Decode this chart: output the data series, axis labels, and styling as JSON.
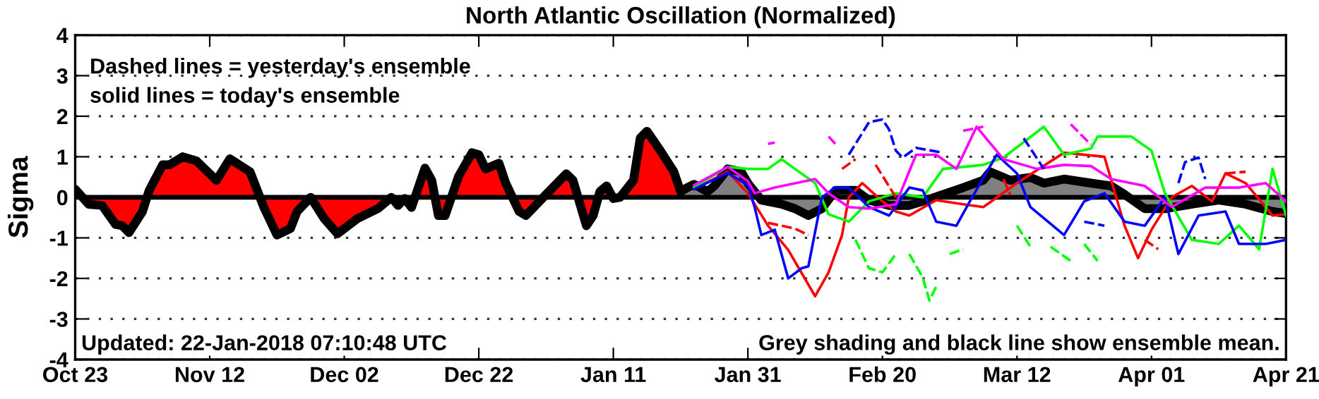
{
  "chart_data": {
    "type": "line",
    "title": "North Atlantic Oscillation (Normalized)",
    "ylabel": "Sigma",
    "annotations": [
      "Dashed lines = yesterday's ensemble",
      "solid lines = today's ensemble",
      "Updated: 22-Jan-2018 07:10:48 UTC",
      "Grey shading and black line show ensemble mean."
    ],
    "xlim": [
      "2017-10-23",
      "2018-04-21"
    ],
    "xticks": [
      {
        "value": "2017-10-23",
        "label": "Oct 23"
      },
      {
        "value": "2017-11-12",
        "label": "Nov 12"
      },
      {
        "value": "2017-12-02",
        "label": "Dec 02"
      },
      {
        "value": "2017-12-22",
        "label": "Dec 22"
      },
      {
        "value": "2018-01-11",
        "label": "Jan 11"
      },
      {
        "value": "2018-01-31",
        "label": "Jan 31"
      },
      {
        "value": "2018-02-20",
        "label": "Feb 20"
      },
      {
        "value": "2018-03-12",
        "label": "Mar 12"
      },
      {
        "value": "2018-04-01",
        "label": "Apr 01"
      },
      {
        "value": "2018-04-21",
        "label": "Apr 21"
      }
    ],
    "ylim": [
      -4,
      4
    ],
    "yticks": [
      -4,
      -3,
      -2,
      -1,
      0,
      1,
      2,
      3,
      4
    ],
    "grid": "y",
    "legend": false,
    "ref_lines": [
      {
        "axis": "y",
        "value": 0,
        "color": "#000000",
        "line_style": "solid"
      }
    ],
    "series": [
      {
        "color": "#ff0000",
        "line_style": "solid",
        "x": [
          "2018-01-23",
          "2018-01-28",
          "2018-01-31",
          "2018-02-03",
          "2018-02-06",
          "2018-02-10",
          "2018-02-12",
          "2018-02-14",
          "2018-02-15",
          "2018-02-17",
          "2018-02-20",
          "2018-02-22",
          "2018-02-24",
          "2018-02-28",
          "2018-03-04",
          "2018-03-07",
          "2018-03-12",
          "2018-03-19",
          "2018-03-25",
          "2018-03-28",
          "2018-03-30",
          "2018-04-01",
          "2018-04-04",
          "2018-04-07",
          "2018-04-10",
          "2018-04-12",
          "2018-04-15",
          "2018-04-19",
          "2018-04-21"
        ],
        "values": [
          0.2,
          0.63,
          0.1,
          -0.7,
          -1.3,
          -2.44,
          -1.85,
          -0.93,
          0,
          0.35,
          -0.1,
          -0.35,
          -0.45,
          -0.07,
          -0.17,
          -0.24,
          0.35,
          1.1,
          1.0,
          -0.7,
          -1.5,
          -0.8,
          0,
          0.28,
          -0.1,
          0.59,
          0.35,
          -0.45,
          -0.42
        ]
      },
      {
        "color": "#00ff00",
        "line_style": "solid",
        "x": [
          "2018-01-23",
          "2018-01-28",
          "2018-01-31",
          "2018-02-03",
          "2018-02-05",
          "2018-02-07",
          "2018-02-10",
          "2018-02-12",
          "2018-02-15",
          "2018-02-18",
          "2018-02-22",
          "2018-02-26",
          "2018-03-01",
          "2018-03-07",
          "2018-03-10",
          "2018-03-16",
          "2018-03-19",
          "2018-03-23",
          "2018-03-24",
          "2018-03-29",
          "2018-04-01",
          "2018-04-03",
          "2018-04-07",
          "2018-04-11",
          "2018-04-14",
          "2018-04-17",
          "2018-04-19",
          "2018-04-21"
        ],
        "values": [
          0.25,
          0.75,
          0.7,
          0.7,
          0.94,
          0.7,
          0.35,
          -0.42,
          -0.6,
          -0.1,
          0.1,
          0,
          0.7,
          0.8,
          0.98,
          1.74,
          1.05,
          1.2,
          1.5,
          1.5,
          1.15,
          0.1,
          -1.05,
          -1.15,
          -0.7,
          -1.28,
          0.7,
          -0.45
        ]
      },
      {
        "color": "#0000ff",
        "line_style": "solid",
        "x": [
          "2018-01-23",
          "2018-01-28",
          "2018-01-31",
          "2018-02-01",
          "2018-02-02",
          "2018-02-04",
          "2018-02-06",
          "2018-02-08",
          "2018-02-09",
          "2018-02-11",
          "2018-02-13",
          "2018-02-15",
          "2018-02-18",
          "2018-02-21",
          "2018-02-24",
          "2018-02-26",
          "2018-02-28",
          "2018-03-03",
          "2018-03-05",
          "2018-03-09",
          "2018-03-12",
          "2018-03-14",
          "2018-03-19",
          "2018-03-22",
          "2018-03-25",
          "2018-03-28",
          "2018-03-31",
          "2018-04-03",
          "2018-04-05",
          "2018-04-08",
          "2018-04-12",
          "2018-04-14",
          "2018-04-18",
          "2018-04-21"
        ],
        "values": [
          0.2,
          0.6,
          0.3,
          -0.24,
          -0.93,
          -0.8,
          -2.0,
          -1.75,
          -1.7,
          0,
          0.24,
          0.24,
          -0.24,
          -0.45,
          0.24,
          0.17,
          -0.6,
          -0.7,
          -0.1,
          1.05,
          0.59,
          -0.24,
          -0.93,
          -0.1,
          0.1,
          -0.6,
          -0.7,
          0,
          -1.4,
          -0.45,
          -0.35,
          -1.15,
          -1.15,
          -1.05
        ]
      },
      {
        "color": "#ff00ff",
        "line_style": "solid",
        "x": [
          "2018-01-23",
          "2018-01-28",
          "2018-01-31",
          "2018-02-01",
          "2018-02-04",
          "2018-02-10",
          "2018-02-12",
          "2018-02-15",
          "2018-02-18",
          "2018-02-22",
          "2018-02-25",
          "2018-02-28",
          "2018-03-03",
          "2018-03-06",
          "2018-03-10",
          "2018-03-15",
          "2018-03-19",
          "2018-03-23",
          "2018-03-26",
          "2018-03-31",
          "2018-04-04",
          "2018-04-09",
          "2018-04-14",
          "2018-04-18",
          "2018-04-21"
        ],
        "values": [
          0.3,
          0.75,
          0.4,
          0.1,
          0.24,
          0.45,
          0.1,
          -0.24,
          -0.28,
          -0.17,
          1.05,
          1.05,
          0.7,
          1.74,
          0.94,
          0.7,
          0.8,
          0.77,
          0.45,
          0.28,
          -0.24,
          0.24,
          0.24,
          0.35,
          -0.1
        ]
      },
      {
        "color": "#ff00ff",
        "line_style": "dashed",
        "x": [
          "2018-02-03",
          "2018-02-04",
          "2018-02-08",
          "2018-02-12",
          "2018-02-13",
          "2018-02-20",
          "2018-03-04",
          "2018-03-07",
          "2018-03-12",
          "2018-03-20",
          "2018-03-23"
        ],
        "values": [
          1.32,
          1.35,
          null,
          1.5,
          1.32,
          null,
          1.64,
          1.74,
          null,
          1.8,
          1.3
        ]
      },
      {
        "color": "#0000ff",
        "line_style": "dashed",
        "x": [
          "2018-02-15",
          "2018-02-18",
          "2018-02-20",
          "2018-02-21",
          "2018-02-22",
          "2018-02-23",
          "2018-02-25",
          "2018-03-01",
          "2018-03-06",
          "2018-03-13",
          "2018-03-16",
          "2018-03-19",
          "2018-03-22",
          "2018-03-25",
          "2018-04-01",
          "2018-04-05",
          "2018-04-06",
          "2018-04-08",
          "2018-04-09"
        ],
        "values": [
          1.05,
          1.85,
          1.92,
          1.67,
          1.15,
          0.98,
          1.22,
          1.1,
          null,
          1.46,
          0.7,
          null,
          -0.6,
          -0.7,
          null,
          0.35,
          0.87,
          0.98,
          0.45
        ]
      },
      {
        "color": "#00ff00",
        "line_style": "dashed",
        "x": [
          "2018-02-16",
          "2018-02-18",
          "2018-02-20",
          "2018-02-22",
          "2018-02-23",
          "2018-02-24",
          "2018-02-26",
          "2018-02-27",
          "2018-02-28",
          "2018-03-01",
          "2018-03-02",
          "2018-03-04",
          "2018-03-08",
          "2018-03-12",
          "2018-03-14",
          "2018-03-15",
          "2018-03-17",
          "2018-03-20",
          "2018-03-21",
          "2018-03-22",
          "2018-03-24"
        ],
        "values": [
          -1.05,
          -1.75,
          -1.85,
          -1.4,
          null,
          -1.4,
          -1.98,
          -2.55,
          -2.2,
          null,
          -1.4,
          -1.28,
          null,
          -0.7,
          -1.22,
          null,
          -1.22,
          -1.57,
          null,
          -1.15,
          -1.57
        ]
      },
      {
        "color": "#ff0000",
        "line_style": "dashed",
        "x": [
          "2018-02-03",
          "2018-02-07",
          "2018-02-09",
          "2018-02-11",
          "2018-02-14",
          "2018-02-16",
          "2018-02-17",
          "2018-02-19",
          "2018-02-22",
          "2018-02-25",
          "2018-03-10",
          "2018-03-11",
          "2018-03-20",
          "2018-03-31",
          "2018-04-02",
          "2018-04-06",
          "2018-04-12",
          "2018-04-15"
        ],
        "values": [
          -0.63,
          -0.77,
          -0.93,
          null,
          0.7,
          0.94,
          null,
          0.8,
          0,
          null,
          0.45,
          0.07,
          null,
          -1.05,
          -1.28,
          null,
          0.59,
          0.63
        ]
      },
      {
        "type": "area",
        "color": "#ff0000",
        "x": [
          "2017-10-23",
          "2017-10-25",
          "2017-10-27",
          "2017-10-29",
          "2017-10-30",
          "2017-10-31",
          "2017-11-02",
          "2017-11-03",
          "2017-11-05",
          "2017-11-06",
          "2017-11-08",
          "2017-11-10",
          "2017-11-13",
          "2017-11-15",
          "2017-11-18",
          "2017-11-20",
          "2017-11-22",
          "2017-11-24",
          "2017-11-25",
          "2017-11-27",
          "2017-11-29",
          "2017-12-01",
          "2017-12-04",
          "2017-12-07",
          "2017-12-09",
          "2017-12-10",
          "2017-12-11",
          "2017-12-12",
          "2017-12-14",
          "2017-12-15",
          "2017-12-16",
          "2017-12-17",
          "2017-12-19",
          "2017-12-21",
          "2017-12-22",
          "2017-12-23",
          "2017-12-25",
          "2017-12-26",
          "2017-12-28",
          "2017-12-29",
          "2018-01-01",
          "2018-01-04",
          "2018-01-05",
          "2018-01-07",
          "2018-01-08",
          "2018-01-09",
          "2018-01-10",
          "2018-01-11",
          "2018-01-12",
          "2018-01-14",
          "2018-01-15",
          "2018-01-16",
          "2018-01-18",
          "2018-01-20",
          "2018-01-21"
        ],
        "values": [
          0.2,
          -0.17,
          -0.2,
          -0.67,
          -0.7,
          -0.87,
          -0.35,
          0.17,
          0.8,
          0.8,
          1.0,
          0.9,
          0.42,
          0.95,
          0.63,
          -0.23,
          -0.93,
          -0.77,
          -0.35,
          0,
          -0.52,
          -0.9,
          -0.52,
          -0.28,
          0,
          -0.2,
          -0.03,
          -0.25,
          0.72,
          0.42,
          -0.45,
          -0.45,
          0.52,
          1.1,
          1.05,
          0.7,
          0.84,
          0.35,
          -0.35,
          -0.45,
          0.07,
          0.58,
          0.42,
          -0.7,
          -0.45,
          0.14,
          0.28,
          -0.03,
          0,
          0.42,
          1.46,
          1.63,
          1.15,
          0.63,
          0.14
        ]
      },
      {
        "type": "area",
        "color": "#808080",
        "x": [
          "2018-01-21",
          "2018-01-22",
          "2018-01-23",
          "2018-01-25",
          "2018-01-26",
          "2018-01-28",
          "2018-01-30",
          "2018-01-31",
          "2018-02-02",
          "2018-02-05",
          "2018-02-07",
          "2018-02-09",
          "2018-02-11",
          "2018-02-13",
          "2018-02-16",
          "2018-02-18",
          "2018-02-21",
          "2018-02-24",
          "2018-02-26",
          "2018-03-01",
          "2018-03-04",
          "2018-03-07",
          "2018-03-08",
          "2018-03-11",
          "2018-03-14",
          "2018-03-16",
          "2018-03-19",
          "2018-03-23",
          "2018-03-26",
          "2018-03-28",
          "2018-03-31",
          "2018-04-03",
          "2018-04-07",
          "2018-04-11",
          "2018-04-15",
          "2018-04-19",
          "2018-04-21"
        ],
        "values": [
          0.14,
          0.24,
          0.32,
          0.14,
          0.28,
          0.7,
          0.63,
          0.35,
          -0.07,
          -0.17,
          -0.28,
          -0.45,
          -0.28,
          0.17,
          0.17,
          -0.07,
          -0.2,
          -0.2,
          -0.1,
          0.07,
          0.24,
          0.42,
          0.63,
          0.42,
          0.49,
          0.35,
          0.45,
          0.35,
          0.28,
          0.07,
          -0.28,
          -0.28,
          -0.17,
          -0.07,
          -0.17,
          -0.35,
          -0.4
        ]
      }
    ]
  }
}
